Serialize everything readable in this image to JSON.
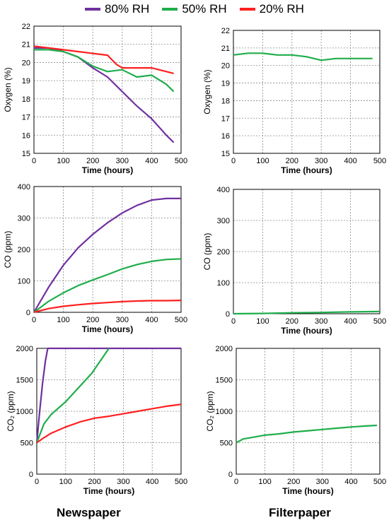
{
  "legend": [
    {
      "label": "80% RH",
      "color": "#7030a0"
    },
    {
      "label": "50% RH",
      "color": "#1fae4b"
    },
    {
      "label": "20% RH",
      "color": "#ff1f1f"
    }
  ],
  "column_labels": {
    "left": "Newspaper",
    "right": "Filterpaper"
  },
  "chart_data": [
    {
      "id": "news-oxygen",
      "type": "line",
      "title": "",
      "xlabel": "Time (hours)",
      "ylabel": "Oxygen (%)",
      "xlim": [
        0,
        500
      ],
      "ylim": [
        15,
        22
      ],
      "xticks": [
        0,
        100,
        200,
        300,
        400,
        500
      ],
      "yticks": [
        15,
        16,
        17,
        18,
        19,
        20,
        21,
        22
      ],
      "grid": true,
      "series": [
        {
          "name": "80% RH",
          "color": "#7030a0",
          "x": [
            0,
            50,
            100,
            150,
            200,
            250,
            300,
            350,
            400,
            450,
            475
          ],
          "y": [
            20.8,
            20.8,
            20.6,
            20.3,
            19.7,
            19.2,
            18.4,
            17.6,
            16.9,
            16.0,
            15.6
          ]
        },
        {
          "name": "50% RH",
          "color": "#1fae4b",
          "x": [
            0,
            50,
            100,
            150,
            200,
            250,
            300,
            350,
            400,
            450,
            475
          ],
          "y": [
            20.7,
            20.7,
            20.6,
            20.3,
            19.8,
            19.5,
            19.6,
            19.2,
            19.3,
            18.8,
            18.4
          ]
        },
        {
          "name": "20% RH",
          "color": "#ff1f1f",
          "x": [
            0,
            50,
            100,
            150,
            200,
            250,
            280,
            300,
            350,
            400,
            450,
            475
          ],
          "y": [
            20.9,
            20.8,
            20.7,
            20.6,
            20.5,
            20.4,
            19.9,
            19.7,
            19.7,
            19.7,
            19.5,
            19.4
          ]
        }
      ]
    },
    {
      "id": "filter-oxygen",
      "type": "line",
      "title": "",
      "xlabel": "Time (hours)",
      "ylabel": "Oxygen (%)",
      "xlim": [
        0,
        500
      ],
      "ylim": [
        15,
        22
      ],
      "xticks": [
        0,
        100,
        200,
        300,
        400,
        500
      ],
      "yticks": [
        15,
        16,
        17,
        18,
        19,
        20,
        21,
        22
      ],
      "grid": true,
      "series": [
        {
          "name": "50% RH",
          "color": "#1fae4b",
          "x": [
            0,
            50,
            100,
            150,
            200,
            250,
            300,
            350,
            400,
            450,
            475
          ],
          "y": [
            20.6,
            20.7,
            20.7,
            20.6,
            20.6,
            20.5,
            20.3,
            20.4,
            20.4,
            20.4,
            20.4
          ]
        }
      ]
    },
    {
      "id": "news-co",
      "type": "line",
      "title": "",
      "xlabel": "Time (hours)",
      "ylabel": "CO (ppm)",
      "xlim": [
        0,
        500
      ],
      "ylim": [
        0,
        400
      ],
      "xticks": [
        0,
        100,
        200,
        300,
        400,
        500
      ],
      "yticks": [
        0,
        100,
        200,
        300,
        400
      ],
      "grid": true,
      "series": [
        {
          "name": "80% RH",
          "color": "#7030a0",
          "x": [
            0,
            50,
            100,
            150,
            200,
            250,
            300,
            350,
            400,
            450,
            500
          ],
          "y": [
            0,
            80,
            150,
            205,
            248,
            285,
            316,
            340,
            357,
            362,
            362
          ]
        },
        {
          "name": "50% RH",
          "color": "#1fae4b",
          "x": [
            0,
            50,
            100,
            150,
            200,
            250,
            300,
            350,
            400,
            450,
            500
          ],
          "y": [
            0,
            35,
            62,
            85,
            103,
            120,
            138,
            152,
            162,
            168,
            170
          ]
        },
        {
          "name": "20% RH",
          "color": "#ff1f1f",
          "x": [
            0,
            50,
            100,
            150,
            200,
            250,
            300,
            350,
            400,
            450,
            500
          ],
          "y": [
            0,
            12,
            19,
            24,
            28,
            31,
            34,
            36,
            37,
            37,
            38
          ]
        }
      ]
    },
    {
      "id": "filter-co",
      "type": "line",
      "title": "",
      "xlabel": "Time (hours)",
      "ylabel": "CO (ppm)",
      "xlim": [
        0,
        500
      ],
      "ylim": [
        0,
        400
      ],
      "xticks": [
        0,
        100,
        200,
        300,
        400,
        500
      ],
      "yticks": [
        0,
        100,
        200,
        300,
        400
      ],
      "grid": true,
      "series": [
        {
          "name": "50% RH",
          "color": "#1fae4b",
          "x": [
            0,
            100,
            200,
            300,
            400,
            500
          ],
          "y": [
            0,
            1,
            3,
            4,
            6,
            7
          ]
        }
      ]
    },
    {
      "id": "news-co2",
      "type": "line",
      "title": "",
      "xlabel": "Time (hours)",
      "ylabel": "CO₂ (ppm)",
      "xlim": [
        0,
        500
      ],
      "ylim": [
        0,
        2000
      ],
      "xticks": [
        0,
        100,
        200,
        300,
        400,
        500
      ],
      "yticks": [
        0,
        500,
        1000,
        1500,
        2000
      ],
      "grid": true,
      "series": [
        {
          "name": "80% RH",
          "color": "#7030a0",
          "x": [
            0,
            10,
            20,
            30,
            38,
            500
          ],
          "y": [
            500,
            1000,
            1450,
            1800,
            2000,
            2000
          ]
        },
        {
          "name": "50% RH",
          "color": "#1fae4b",
          "x": [
            0,
            25,
            50,
            100,
            150,
            190,
            220,
            250
          ],
          "y": [
            500,
            800,
            950,
            1150,
            1400,
            1600,
            1800,
            2000
          ]
        },
        {
          "name": "20% RH",
          "color": "#ff1f1f",
          "x": [
            0,
            25,
            50,
            100,
            150,
            200,
            250,
            300,
            350,
            400,
            450,
            500
          ],
          "y": [
            500,
            580,
            650,
            750,
            830,
            890,
            920,
            960,
            1000,
            1040,
            1080,
            1110
          ]
        }
      ]
    },
    {
      "id": "filter-co2",
      "type": "line",
      "title": "",
      "xlabel": "Time (hours)",
      "ylabel": "CO₂ (ppm)",
      "xlim": [
        0,
        500
      ],
      "ylim": [
        0,
        2000
      ],
      "xticks": [
        0,
        100,
        200,
        300,
        400,
        500
      ],
      "yticks": [
        0,
        500,
        1000,
        1500,
        2000
      ],
      "grid": true,
      "series": [
        {
          "name": "50% RH",
          "color": "#1fae4b",
          "x": [
            0,
            25,
            50,
            100,
            150,
            200,
            250,
            300,
            350,
            400,
            450,
            490
          ],
          "y": [
            500,
            560,
            580,
            620,
            640,
            670,
            690,
            710,
            730,
            750,
            765,
            775
          ]
        }
      ]
    }
  ]
}
